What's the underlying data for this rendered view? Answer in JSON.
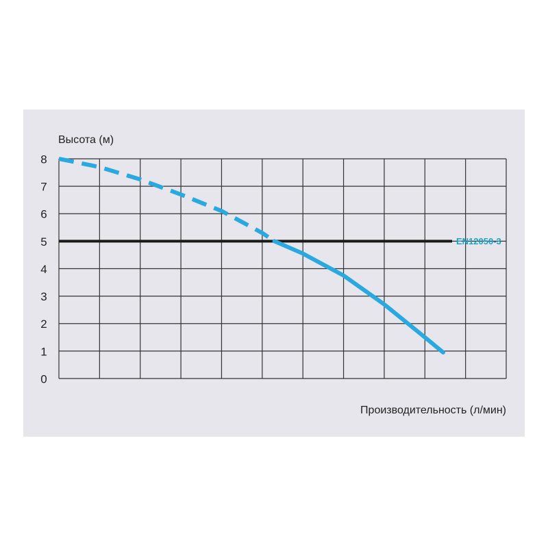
{
  "chart_data": {
    "type": "line",
    "ylabel": "Высота (м)",
    "xlabel": "Производительность (л/мин)",
    "ylim": [
      0,
      8
    ],
    "yticks": [
      0,
      1,
      2,
      3,
      4,
      5,
      6,
      7,
      8
    ],
    "xlim": [
      0,
      11
    ],
    "xticks": [
      0,
      1,
      2,
      3,
      4,
      5,
      6,
      7,
      8,
      9,
      10,
      11
    ],
    "xticklabels": false,
    "grid": true,
    "series": [
      {
        "style": "dashed",
        "color": "#29a9df",
        "x": [
          0,
          1,
          2,
          3,
          4,
          5,
          5.3
        ],
        "values": [
          8,
          7.7,
          7.25,
          6.7,
          6.1,
          5.3,
          5
        ]
      },
      {
        "style": "solid",
        "color": "#29a9df",
        "x": [
          5.3,
          6,
          7,
          8,
          9,
          9.45
        ],
        "values": [
          5,
          4.55,
          3.75,
          2.7,
          1.5,
          0.95
        ]
      }
    ],
    "reference_line": {
      "value": 5,
      "label": "EN12050-3",
      "color": "#1a1a1a",
      "label_color": "#1ba3c6"
    }
  }
}
